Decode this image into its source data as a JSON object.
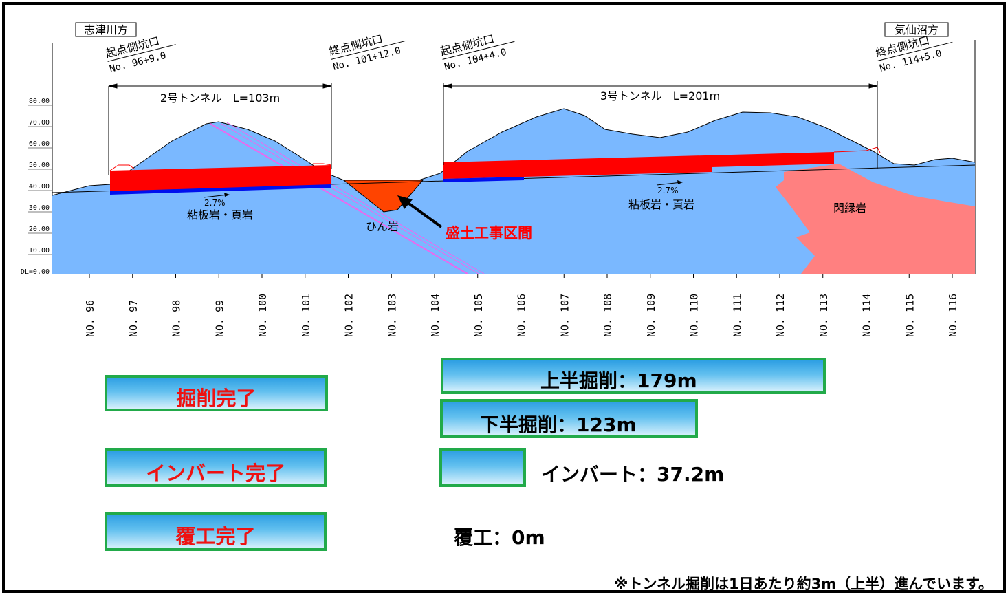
{
  "left_direction": "志津川方",
  "right_direction": "気仙沼方",
  "elevation_ticks": [
    "80.00",
    "70.00",
    "60.00",
    "50.00",
    "40.00",
    "30.00",
    "20.00",
    "10.00",
    "DL=0.00"
  ],
  "stations": [
    "NO. 96",
    "NO. 97",
    "NO. 98",
    "NO. 99",
    "NO. 100",
    "NO. 101",
    "NO. 102",
    "NO. 103",
    "NO. 104",
    "NO. 105",
    "NO. 106",
    "NO. 107",
    "NO. 108",
    "NO. 109",
    "NO. 110",
    "NO. 111",
    "NO. 112",
    "NO. 113",
    "NO. 114",
    "NO. 115",
    "NO. 116"
  ],
  "tunnel2": {
    "start_title": "起点側坑口",
    "start_station": "No. 96+9.0",
    "end_title": "終点側坑口",
    "end_station": "No. 101+12.0",
    "name": "2号トンネル　L=103m",
    "grade": "2.7%"
  },
  "tunnel3": {
    "start_title": "起点側坑口",
    "start_station": "No. 104+4.0",
    "end_title": "終点側坑口",
    "end_station": "No. 114+5.0",
    "name": "3号トンネル　L=201m",
    "grade": "2.7%"
  },
  "geology": {
    "slate_left": "粘板岩・頁岩",
    "slate_right": "粘板岩・頁岩",
    "porphyrite": "ひん岩",
    "diorite": "閃緑岩"
  },
  "embankment_label": "盛土工事区間",
  "legend": {
    "excavation_done": "掘削完了",
    "invert_done": "インバート完了",
    "lining_done": "覆工完了"
  },
  "progress": {
    "upper": "上半掘削：179m",
    "lower": "下半掘削：123m",
    "invert": "インバート：37.2m",
    "lining": "覆工：0m"
  },
  "footnote": "※トンネル掘削は1日あたり約3m（上半）進んでいます。",
  "colors": {
    "ground": "#7ab8ff",
    "excavation": "#ff0000",
    "invert": "#0010ee",
    "porphyrite": "#ff4400",
    "diorite": "#ff8080",
    "dike": "#ee66ee",
    "legend_border": "#22aa4a",
    "status_text": "#ee1111",
    "embankment_text": "#ff0000"
  }
}
